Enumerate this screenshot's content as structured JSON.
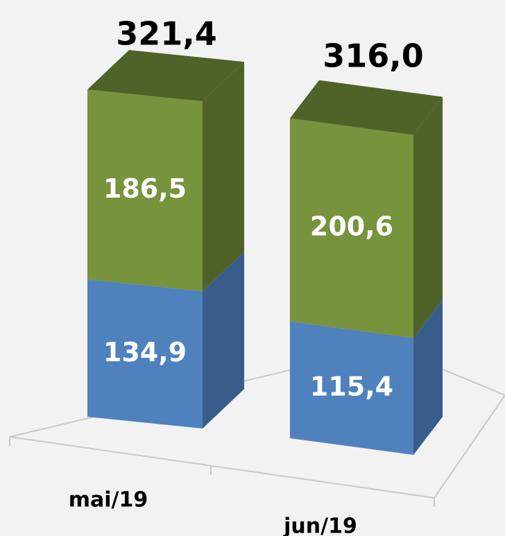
{
  "chart_data": {
    "type": "bar",
    "stacked": true,
    "three_d": true,
    "categories": [
      "mai/19",
      "jun/19"
    ],
    "series": [
      {
        "values": [
          134.9,
          115.4
        ],
        "color": "#4f81bd",
        "side_color": "#385d8a"
      },
      {
        "values": [
          186.5,
          200.6
        ],
        "color": "#77933c",
        "side_color": "#4f6228"
      }
    ],
    "totals": [
      321.4,
      316.0
    ],
    "data_labels": {
      "segments": [
        [
          "134,9",
          "115,4"
        ],
        [
          "186,5",
          "200,6"
        ]
      ],
      "totals": [
        "321,4",
        "316,0"
      ]
    },
    "title": "",
    "xlabel": "",
    "ylabel": "",
    "legend": "none",
    "grid": false,
    "background": "#f2f2f2"
  }
}
